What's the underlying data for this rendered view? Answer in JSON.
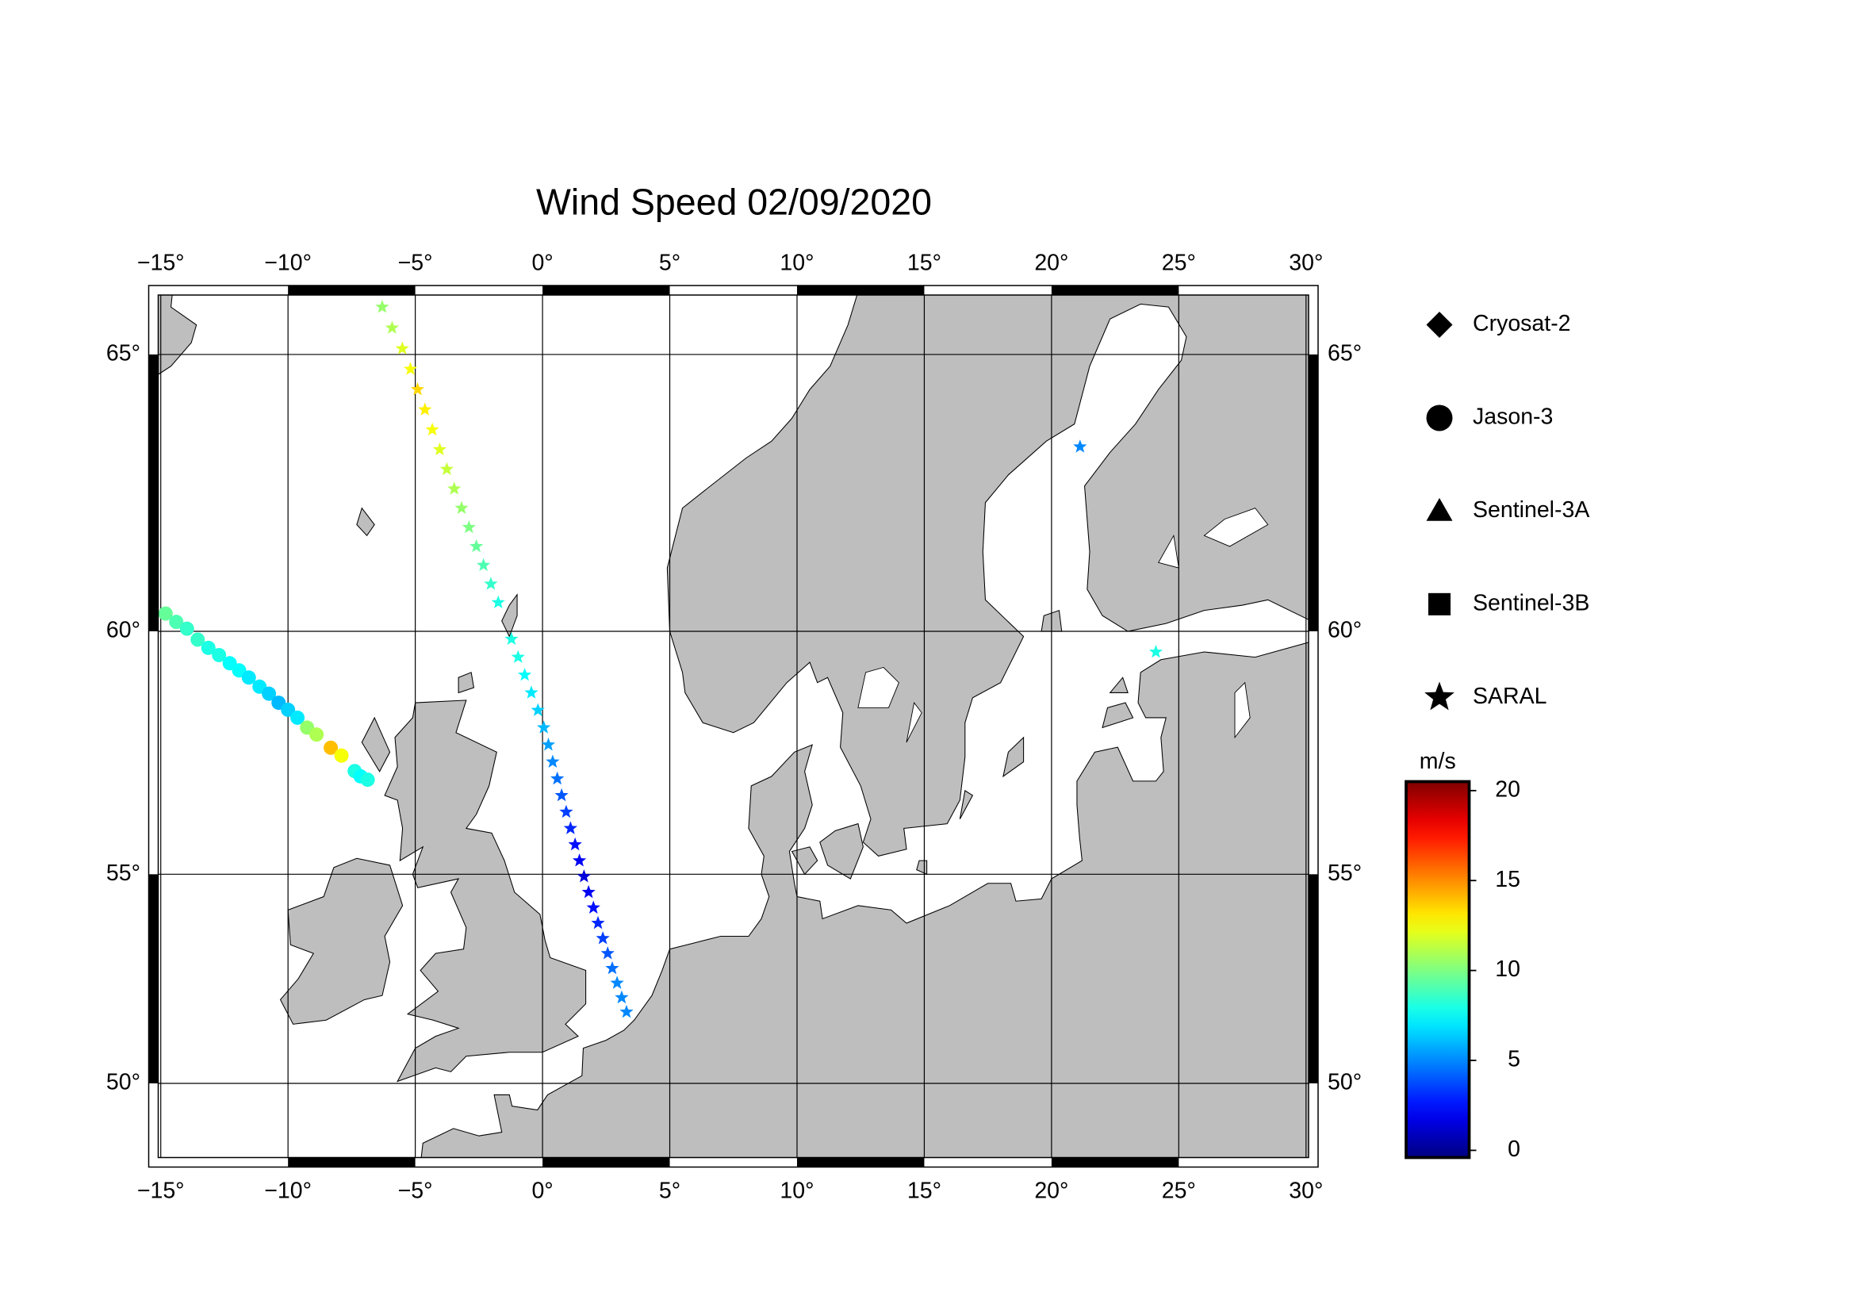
{
  "chart_data": {
    "type": "scatter",
    "title": "Wind Speed 02/09/2020",
    "projection": "map",
    "xlim": [
      -15.1,
      30.1
    ],
    "ylim": [
      48,
      66
    ],
    "xticks": [
      {
        "value": -15,
        "label": "−15°"
      },
      {
        "value": -10,
        "label": "−10°"
      },
      {
        "value": -5,
        "label": "−5°"
      },
      {
        "value": 0,
        "label": "0°"
      },
      {
        "value": 5,
        "label": "5°"
      },
      {
        "value": 10,
        "label": "10°"
      },
      {
        "value": 15,
        "label": "15°"
      },
      {
        "value": 20,
        "label": "20°"
      },
      {
        "value": 25,
        "label": "25°"
      },
      {
        "value": 30,
        "label": "30°"
      }
    ],
    "yticks": [
      {
        "value": 50,
        "label": "50°"
      },
      {
        "value": 55,
        "label": "55°"
      },
      {
        "value": 60,
        "label": "60°"
      },
      {
        "value": 65,
        "label": "65°"
      }
    ],
    "grid": true,
    "land_color": "#bebebe",
    "colorbar": {
      "label": "m/s",
      "colormap": "jet",
      "lim": [
        -0.4,
        20.5
      ],
      "ticks": [
        0,
        5,
        10,
        15,
        20
      ]
    },
    "series": [
      {
        "name": "Cryosat-2",
        "marker": "diamond",
        "x": [],
        "y": [],
        "values": []
      },
      {
        "name": "Jason-3",
        "marker": "circle",
        "x": [
          -14.81,
          -14.39,
          -13.97,
          -13.55,
          -13.13,
          -12.71,
          -12.29,
          -11.92,
          -11.54,
          -11.12,
          -10.75,
          -10.37,
          -10.0,
          -9.63,
          -9.25,
          -8.88,
          -8.32,
          -7.9,
          -7.38,
          -7.15,
          -6.87
        ],
        "y": [
          60.34,
          60.18,
          60.05,
          59.84,
          59.68,
          59.54,
          59.38,
          59.24,
          59.1,
          58.92,
          58.78,
          58.6,
          58.46,
          58.3,
          58.1,
          57.96,
          57.69,
          57.53,
          57.21,
          57.1,
          57.03
        ],
        "values": [
          9.5,
          9,
          8.5,
          8.5,
          8,
          8,
          7.5,
          7.5,
          7,
          7,
          6.5,
          6,
          6.5,
          7,
          10.5,
          11,
          14,
          12.5,
          8,
          7.5,
          8
        ]
      },
      {
        "name": "Sentinel-3A",
        "marker": "triangle",
        "x": [],
        "y": [],
        "values": []
      },
      {
        "name": "Sentinel-3B",
        "marker": "square",
        "x": [],
        "y": [],
        "values": []
      },
      {
        "name": "SARAL",
        "marker": "star",
        "x": [
          -6.3,
          -5.91,
          -5.51,
          -5.19,
          -4.91,
          -4.62,
          -4.33,
          -4.04,
          -3.76,
          -3.47,
          -3.18,
          -2.89,
          -2.6,
          -2.32,
          -2.03,
          -1.74,
          -1.22,
          -0.96,
          -0.7,
          -0.44,
          -0.18,
          0.05,
          0.23,
          0.4,
          0.58,
          0.75,
          0.93,
          1.1,
          1.28,
          1.45,
          1.63,
          1.81,
          2,
          2.18,
          2.37,
          2.56,
          2.74,
          2.93,
          3.11,
          3.3,
          21.12,
          24.1
        ],
        "y": [
          65.8,
          65.45,
          65.1,
          64.75,
          64.4,
          64.05,
          63.7,
          63.35,
          63,
          62.65,
          62.3,
          61.95,
          61.6,
          61.25,
          60.9,
          60.55,
          59.85,
          59.5,
          59.15,
          58.8,
          58.45,
          58.1,
          57.75,
          57.4,
          57.05,
          56.7,
          56.35,
          56,
          55.65,
          55.3,
          54.95,
          54.6,
          54.25,
          53.9,
          53.55,
          53.2,
          52.85,
          52.5,
          52.15,
          51.8,
          63.4,
          59.6
        ],
        "values": [
          10.5,
          11,
          12,
          12.5,
          13.5,
          13,
          12.5,
          12,
          11.5,
          11,
          10.5,
          10,
          9.5,
          9,
          8.5,
          8,
          8,
          8,
          7.5,
          7,
          6.5,
          6,
          5.5,
          5,
          4.5,
          4,
          3.5,
          3,
          2.5,
          2,
          1.5,
          2,
          2.5,
          3,
          3.5,
          4,
          4.5,
          5,
          5,
          5,
          5,
          8
        ]
      }
    ]
  }
}
